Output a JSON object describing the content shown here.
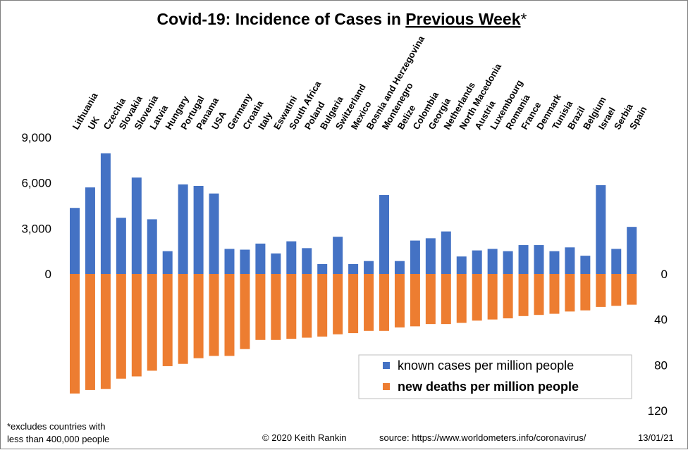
{
  "chart_data": {
    "type": "bar",
    "title": {
      "part1": "Covid-19: Incidence of Cases in ",
      "part2": "Previous Week",
      "part3": "*"
    },
    "categories": [
      "Lithuania",
      "UK",
      "Czechia",
      "Slovakia",
      "Slovenia",
      "Latvia",
      "Hungary",
      "Portugal",
      "Panama",
      "USA",
      "Germany",
      "Croatia",
      "Italy",
      "Eswatini",
      "South Africa",
      "Poland",
      "Bulgaria",
      "Switzerland",
      "Mexico",
      "Bosnia and Herzegovina",
      "Montenegro",
      "Belize",
      "Colombia",
      "Georgia",
      "Netherlands",
      "North Macedonia",
      "Austria",
      "Luxembourg",
      "Romania",
      "France",
      "Denmark",
      "Tunisia",
      "Brazil",
      "Belgium",
      "Israel",
      "Serbia",
      "Spain"
    ],
    "series": [
      {
        "name": "known cases per million people",
        "color": "#4472c4",
        "axis": "left",
        "values": [
          4350,
          5700,
          7950,
          3700,
          6350,
          3600,
          1500,
          5900,
          5800,
          5300,
          1650,
          1600,
          2000,
          1350,
          2150,
          1700,
          650,
          2450,
          650,
          850,
          5200,
          850,
          2200,
          2350,
          2800,
          1150,
          1550,
          1650,
          1500,
          1900,
          1900,
          1500,
          1750,
          1200,
          5850,
          1650,
          3100
        ]
      },
      {
        "name": "new deaths per million people",
        "color": "#ed7d31",
        "axis": "right",
        "values": [
          105,
          102,
          101,
          92,
          90,
          85,
          81,
          79,
          74,
          72,
          72,
          66,
          58,
          58,
          57,
          56,
          55,
          53,
          52,
          50,
          50,
          47,
          46,
          44,
          44,
          43,
          41,
          40,
          39,
          37,
          36,
          35,
          33,
          32,
          29,
          28,
          27
        ]
      }
    ],
    "y_left": {
      "ticks": [
        "9,000",
        "6,000",
        "3,000",
        "0"
      ],
      "tick_values": [
        9000,
        6000,
        3000,
        0
      ],
      "ylim": [
        0,
        9000
      ]
    },
    "y_right": {
      "ticks": [
        "0",
        "40",
        "80",
        "120"
      ],
      "tick_values": [
        0,
        40,
        80,
        120
      ],
      "ylim": [
        0,
        120
      ]
    },
    "legend": {
      "position": "bottom-right"
    },
    "grid": false
  },
  "footer": {
    "note_line1": "*excludes countries with",
    "note_line2": "less than 400,000 people",
    "copyright": "© 2020  Keith Rankin",
    "source": "source:  https://www.worldometers.info/coronavirus/",
    "date": "13/01/21"
  }
}
